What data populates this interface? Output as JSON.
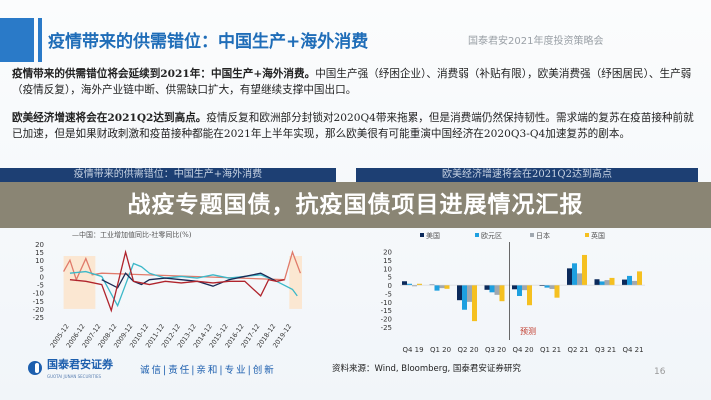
{
  "header": {
    "title": "疫情带来的供需错位：中国生产+海外消费",
    "conference": "国泰君安2021年度投资策略会"
  },
  "paragraphs": [
    {
      "bold": "疫情带来的供需错位将会延续到2021年：中国生产+海外消费。",
      "text": "中国生产强（纾困企业）、消费弱（补贴有限），欧美消费强（纾困居民）、生产弱（疫情反复），海外产业链中断、供需缺口扩大，有望继续支撑中国出口。"
    },
    {
      "bold": "欧美经济增速将会在2021Q2达到高点。",
      "text": "疫情反复和欧洲部分封锁对2020Q4带来拖累，但是消费端仍然保持韧性。需求端的复苏在疫苗接种前就已加速，但是如果财政刺激和疫苗接种都能在2021年上半年实现，那么欧美很有可能重演中国经济在2020Q3-Q4加速复苏的剧本。"
    }
  ],
  "overlay_title": "战疫专题国债，抗疫国债项目进展情况汇报",
  "chart_data": [
    {
      "type": "line",
      "title": "疫情带来的供需错位：中国生产+海外消费",
      "legend_visible": "—中国：工业增加值同比-社零同比(%)",
      "ylim": [
        -25,
        20
      ],
      "yticks": [
        20,
        15,
        10,
        5,
        0,
        -5,
        -10,
        -15,
        -20,
        -25
      ],
      "xticks": [
        "2005-12",
        "2006-12",
        "2007-12",
        "2008-12",
        "2009-12",
        "2010-12",
        "2011-12",
        "2012-12",
        "2013-12",
        "2014-12",
        "2015-12",
        "2016-12",
        "2017-12",
        "2018-12",
        "2019-12"
      ],
      "xlim": [
        2005.5,
        2020.6
      ],
      "series": [
        {
          "color": "#e07a6a",
          "points": [
            [
              2005.6,
              3
            ],
            [
              2006,
              10
            ],
            [
              2006.4,
              -2
            ],
            [
              2007,
              11
            ],
            [
              2007.4,
              1
            ],
            [
              2008,
              2
            ],
            [
              2019.5,
              -2
            ],
            [
              2020,
              15
            ],
            [
              2020.5,
              2
            ]
          ]
        },
        {
          "color": "#3cb8c8",
          "points": [
            [
              2006,
              2
            ],
            [
              2007,
              3
            ],
            [
              2008,
              0
            ],
            [
              2009,
              -18
            ],
            [
              2009.5,
              -5
            ],
            [
              2010,
              8
            ],
            [
              2010.5,
              6
            ],
            [
              2011,
              2
            ],
            [
              2012,
              -1
            ],
            [
              2013,
              0
            ],
            [
              2014,
              -1
            ],
            [
              2015,
              1
            ],
            [
              2016,
              -1
            ],
            [
              2017,
              0
            ],
            [
              2018,
              1
            ],
            [
              2019,
              -3
            ],
            [
              2020,
              -8
            ],
            [
              2020.3,
              -12
            ]
          ]
        },
        {
          "color": "#1a2a55",
          "points": [
            [
              2008,
              -2
            ],
            [
              2009,
              -7
            ],
            [
              2009.5,
              2
            ],
            [
              2010,
              -3
            ],
            [
              2010.5,
              -5
            ],
            [
              2011,
              -2
            ],
            [
              2012,
              -1
            ],
            [
              2013,
              -2
            ],
            [
              2014,
              -3
            ],
            [
              2015,
              -6
            ],
            [
              2016,
              -2
            ],
            [
              2017,
              0
            ],
            [
              2018,
              2
            ],
            [
              2019,
              -3
            ]
          ]
        },
        {
          "color": "#b0242c",
          "points": [
            [
              2006,
              -2
            ],
            [
              2007,
              -3
            ],
            [
              2008,
              -5
            ],
            [
              2008.6,
              -21
            ],
            [
              2009,
              -5
            ],
            [
              2009.5,
              15
            ],
            [
              2010,
              -3
            ],
            [
              2011,
              -5
            ],
            [
              2012,
              -3
            ],
            [
              2013,
              -4
            ],
            [
              2014,
              -3
            ],
            [
              2015,
              -4
            ],
            [
              2016,
              -3
            ],
            [
              2017,
              -3
            ],
            [
              2018,
              -12
            ],
            [
              2018.5,
              -2
            ],
            [
              2019,
              -3
            ],
            [
              2019.5,
              -2
            ]
          ]
        }
      ],
      "shaded_ranges": [
        [
          2005.6,
          2007.6
        ],
        [
          2019.8,
          2020.6
        ]
      ]
    },
    {
      "type": "bar",
      "title": "欧美经济增速将会在2021Q2达到高点",
      "categories": [
        "Q4 19",
        "Q1 20",
        "Q2 20",
        "Q3 20",
        "Q4 20",
        "Q1 21",
        "Q2 21",
        "Q3 21",
        "Q4 21"
      ],
      "ylim": [
        -25,
        20
      ],
      "yticks": [
        20,
        15,
        10,
        5,
        0,
        -5,
        -10,
        -15,
        -20,
        -25
      ],
      "annotation": "预测",
      "forecast_after": "Q3 20",
      "series": [
        {
          "name": "美国",
          "color": "#0b2a5b",
          "values": [
            2.3,
            0.3,
            -9,
            -2.8,
            -2.5,
            -0.5,
            10,
            3.5,
            3.3
          ]
        },
        {
          "name": "欧元区",
          "color": "#1ea0e0",
          "values": [
            0.8,
            -3.3,
            -14.7,
            -4.3,
            -6.5,
            -1.5,
            13,
            2.2,
            5.5
          ]
        },
        {
          "name": "日本",
          "color": "#a0a8b0",
          "values": [
            -0.7,
            -1.8,
            -10,
            -5.8,
            -3,
            -2.3,
            7,
            3,
            2.5
          ]
        },
        {
          "name": "英国",
          "color": "#f5c020",
          "values": [
            0.8,
            -2.2,
            -21.5,
            -9.6,
            -12,
            -7.5,
            18,
            4.3,
            8.2
          ]
        }
      ]
    }
  ],
  "footer": {
    "brand": "国泰君安证券",
    "brand_en": "GUOTAI JUNAN SECURITIES",
    "slogan": "诚信|责任|亲和|专业|创新",
    "source": "资料来源：Wind, Bloomberg, 国泰君安证券研究",
    "page": "16"
  }
}
